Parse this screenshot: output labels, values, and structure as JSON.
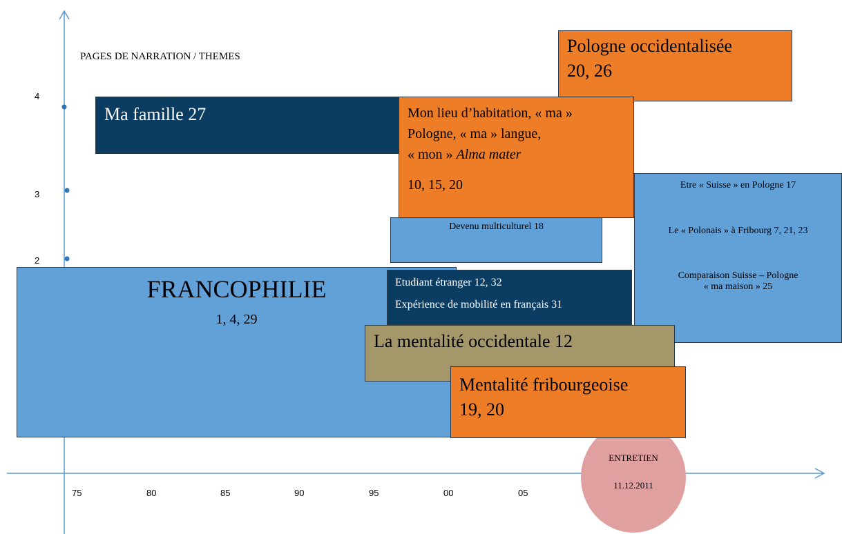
{
  "axis": {
    "y_label": "PAGES DE NARRATION / THEMES",
    "y_ticks": [
      "4",
      "3",
      "2"
    ],
    "x_ticks": [
      "75",
      "80",
      "85",
      "90",
      "95",
      "00",
      "05"
    ]
  },
  "themes": {
    "pologne": {
      "lines": [
        "Pologne occidentalisée",
        "20, 26"
      ]
    },
    "famille": {
      "lines": [
        "Ma famille 27"
      ]
    },
    "lieu": {
      "lines": [
        "Mon lieu d’habitation, « ma »",
        "Pologne, « ma » langue,",
        "« mon » "
      ],
      "italic": "Alma mater",
      "pages": "10, 15, 20"
    },
    "suisse": {
      "lines": [
        "Etre « Suisse » en Pologne 17",
        "Le « Polonais » à Fribourg 7, 21, 23",
        "Comparaison Suisse – Pologne",
        "« ma maison » 25"
      ]
    },
    "multiculturel": {
      "lines": [
        "Devenu multiculturel 18"
      ]
    },
    "francophilie": {
      "lines": [
        "FRANCOPHILIE",
        "1, 4, 29"
      ]
    },
    "etudiant": {
      "lines": [
        "Etudiant étranger 12, 32",
        "Expérience de mobilité en français 31"
      ]
    },
    "occidentale": {
      "lines": [
        "La mentalité occidentale 12"
      ]
    },
    "fribourgeoise": {
      "lines": [
        "Mentalité fribourgeoise",
        "19, 20"
      ]
    }
  },
  "interview": {
    "label": "ENTRETIEN",
    "date": "11.12.2011"
  }
}
